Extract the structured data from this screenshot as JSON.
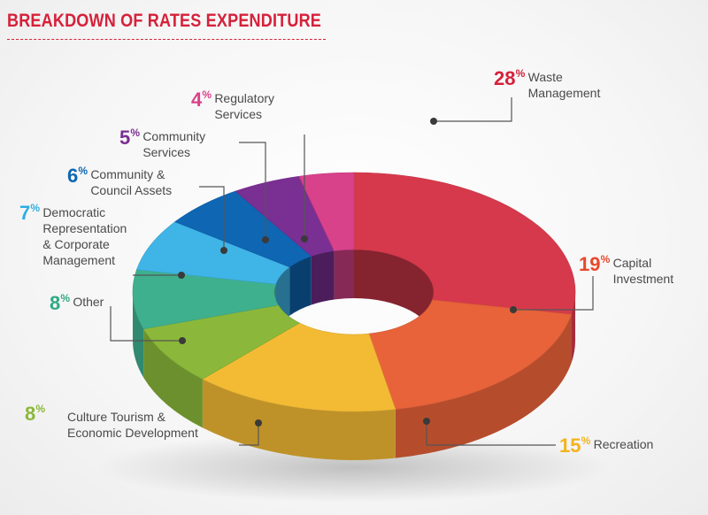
{
  "title": "BREAKDOWN OF RATES EXPENDITURE",
  "chart_data": {
    "type": "pie",
    "title": "BREAKDOWN OF RATES EXPENDITURE",
    "slices": [
      {
        "name": "Waste Management",
        "value": 28,
        "color": "#d6394b"
      },
      {
        "name": "Capital Investment",
        "value": 19,
        "color": "#e8633a"
      },
      {
        "name": "Recreation",
        "value": 15,
        "color": "#f3bb34"
      },
      {
        "name": "Culture Tourism & Economic Development",
        "value": 8,
        "color": "#8bb83a"
      },
      {
        "name": "Other",
        "value": 8,
        "color": "#3fb08e"
      },
      {
        "name": "Democratic Representation & Corporate Management",
        "value": 7,
        "color": "#3fb4e6"
      },
      {
        "name": "Community & Council Assets",
        "value": 6,
        "color": "#0f66b3"
      },
      {
        "name": "Community Services",
        "value": 5,
        "color": "#7a2f93"
      },
      {
        "name": "Regulatory Services",
        "value": 4,
        "color": "#d8428a"
      }
    ],
    "labels": [
      {
        "pct": "28",
        "sup": "%",
        "lines": [
          "Waste",
          "Management"
        ],
        "color": "#d6213a"
      },
      {
        "pct": "19",
        "sup": "%",
        "lines": [
          "Capital",
          "Investment"
        ],
        "color": "#e8482b"
      },
      {
        "pct": "15",
        "sup": "%",
        "lines": [
          "Recreation"
        ],
        "color": "#f3b31c"
      },
      {
        "pct": "8",
        "sup": "%",
        "lines": [
          "Culture Tourism &",
          "Economic Development"
        ],
        "color": "#8bb83a"
      },
      {
        "pct": "8",
        "sup": "%",
        "lines": [
          "Other"
        ],
        "color": "#2fa983"
      },
      {
        "pct": "7",
        "sup": "%",
        "lines": [
          "Democratic",
          "Representation",
          "& Corporate",
          "Management"
        ],
        "color": "#2eaee4"
      },
      {
        "pct": "6",
        "sup": "%",
        "lines": [
          "Community &",
          "Council Assets"
        ],
        "color": "#0f66b3"
      },
      {
        "pct": "5",
        "sup": "%",
        "lines": [
          "Community",
          "Services"
        ],
        "color": "#7a2f93"
      },
      {
        "pct": "4",
        "sup": "%",
        "lines": [
          "Regulatory",
          "Services"
        ],
        "color": "#d8428a"
      }
    ]
  }
}
